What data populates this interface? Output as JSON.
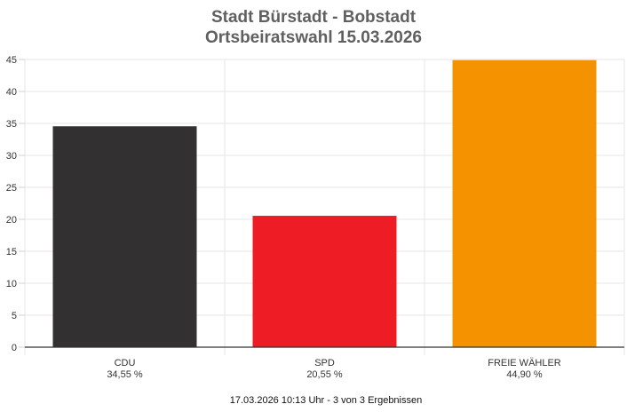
{
  "chart_data": {
    "type": "bar",
    "title": "Stadt Bürstadt - Bobstadt",
    "subtitle": "Ortsbeiratswahl 15.03.2026",
    "categories": [
      "CDU",
      "SPD",
      "FREIE WÄHLER"
    ],
    "values": [
      34.55,
      20.55,
      44.9
    ],
    "value_labels": [
      "34,55 %",
      "20,55 %",
      "44,90 %"
    ],
    "colors": [
      "#323031",
      "#ee1c25",
      "#f59200"
    ],
    "ylim": [
      0,
      45
    ],
    "yticks": [
      "0",
      "5",
      "10",
      "15",
      "20",
      "25",
      "30",
      "35",
      "40",
      "45"
    ],
    "grid": true,
    "footer": "17.03.2026 10:13 Uhr - 3 von 3 Ergebnissen"
  }
}
